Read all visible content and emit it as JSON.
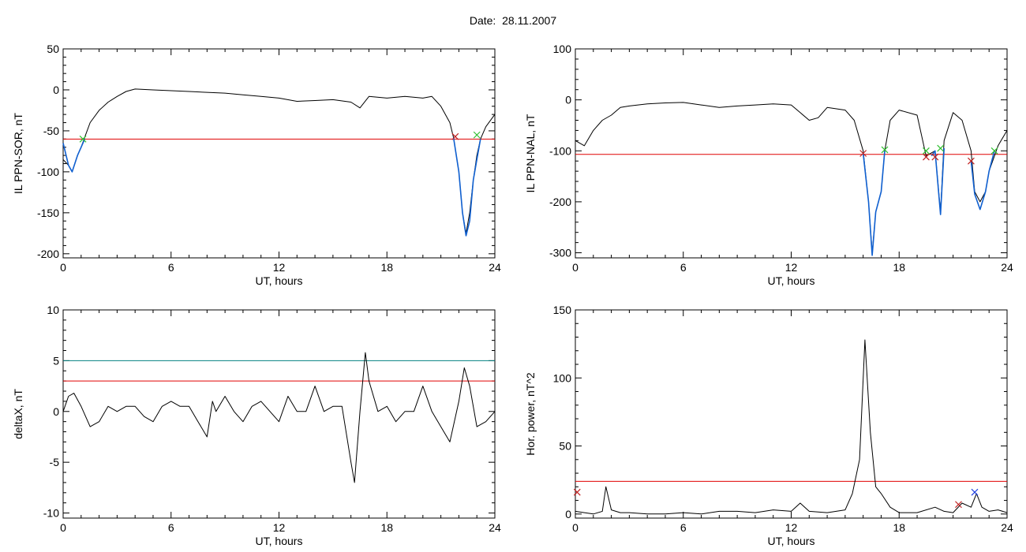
{
  "figure": {
    "title": "Date:  28.11.2007"
  },
  "colors": {
    "black": "#000000",
    "red": "#e00000",
    "teal": "#008080",
    "blue": "#1060d0",
    "green": "#30c030",
    "cross_red": "#c02020",
    "cross_blue": "#2040e0"
  },
  "chart_data": [
    {
      "type": "line",
      "xlabel": "UT, hours",
      "ylabel": "IL PPN-SOR, nT",
      "xlim": [
        0,
        24
      ],
      "ylim": [
        -205,
        50
      ],
      "xticks": [
        0,
        6,
        12,
        18,
        24
      ],
      "yticks": [
        -200,
        -150,
        -100,
        -50,
        0,
        50
      ],
      "series": [
        {
          "color": "black",
          "points": [
            [
              0,
              -85
            ],
            [
              0.3,
              -92
            ],
            [
              0.5,
              -100
            ],
            [
              0.8,
              -80
            ],
            [
              1.0,
              -70
            ],
            [
              1.2,
              -58
            ],
            [
              1.5,
              -40
            ],
            [
              2,
              -25
            ],
            [
              2.5,
              -15
            ],
            [
              3,
              -8
            ],
            [
              3.5,
              -2
            ],
            [
              4,
              1
            ],
            [
              5,
              0
            ],
            [
              6,
              -1
            ],
            [
              7,
              -2
            ],
            [
              8,
              -3
            ],
            [
              9,
              -4
            ],
            [
              10,
              -6
            ],
            [
              11,
              -8
            ],
            [
              12,
              -10
            ],
            [
              13,
              -14
            ],
            [
              14,
              -13
            ],
            [
              15,
              -12
            ],
            [
              16,
              -15
            ],
            [
              16.5,
              -22
            ],
            [
              17,
              -8
            ],
            [
              18,
              -10
            ],
            [
              19,
              -8
            ],
            [
              20,
              -10
            ],
            [
              20.5,
              -8
            ],
            [
              21,
              -20
            ],
            [
              21.5,
              -40
            ],
            [
              21.7,
              -58
            ],
            [
              22,
              -100
            ],
            [
              22.2,
              -150
            ],
            [
              22.4,
              -175
            ],
            [
              22.6,
              -150
            ],
            [
              22.8,
              -110
            ],
            [
              23,
              -80
            ],
            [
              23.2,
              -60
            ],
            [
              23.5,
              -45
            ],
            [
              24,
              -30
            ]
          ]
        },
        {
          "color": "blue",
          "points": [
            [
              0,
              -65
            ],
            [
              0.3,
              -92
            ],
            [
              0.5,
              -100
            ],
            [
              0.8,
              -80
            ],
            [
              1.0,
              -70
            ],
            [
              1.2,
              -60
            ]
          ]
        },
        {
          "color": "blue",
          "points": [
            [
              21.7,
              -58
            ],
            [
              22,
              -100
            ],
            [
              22.2,
              -150
            ],
            [
              22.4,
              -178
            ],
            [
              22.6,
              -160
            ],
            [
              22.8,
              -110
            ],
            [
              23,
              -85
            ],
            [
              23.2,
              -60
            ]
          ]
        }
      ],
      "hlines": [
        {
          "y": -60,
          "color": "red"
        }
      ],
      "markers": [
        {
          "x": 1.1,
          "y": -60,
          "color": "green"
        },
        {
          "x": 21.8,
          "y": -57,
          "color": "cross_red"
        },
        {
          "x": 23.0,
          "y": -55,
          "color": "green"
        }
      ]
    },
    {
      "type": "line",
      "xlabel": "UT, hours",
      "ylabel": "IL PPN-NAL, nT",
      "xlim": [
        0,
        24
      ],
      "ylim": [
        -310,
        100
      ],
      "xticks": [
        0,
        6,
        12,
        18,
        24
      ],
      "yticks": [
        -300,
        -200,
        -100,
        0,
        100
      ],
      "series": [
        {
          "color": "black",
          "points": [
            [
              0,
              -80
            ],
            [
              0.5,
              -90
            ],
            [
              1,
              -60
            ],
            [
              1.5,
              -40
            ],
            [
              2,
              -30
            ],
            [
              2.5,
              -15
            ],
            [
              3,
              -12
            ],
            [
              4,
              -8
            ],
            [
              5,
              -6
            ],
            [
              6,
              -5
            ],
            [
              7,
              -10
            ],
            [
              8,
              -15
            ],
            [
              9,
              -12
            ],
            [
              10,
              -10
            ],
            [
              11,
              -8
            ],
            [
              12,
              -10
            ],
            [
              12.5,
              -25
            ],
            [
              13,
              -40
            ],
            [
              13.5,
              -35
            ],
            [
              14,
              -15
            ],
            [
              15,
              -20
            ],
            [
              15.5,
              -40
            ],
            [
              16,
              -100
            ],
            [
              16.3,
              -200
            ],
            [
              16.5,
              -300
            ],
            [
              16.7,
              -220
            ],
            [
              17,
              -180
            ],
            [
              17.2,
              -100
            ],
            [
              17.5,
              -40
            ],
            [
              18,
              -20
            ],
            [
              19,
              -30
            ],
            [
              19.5,
              -110
            ],
            [
              20,
              -100
            ],
            [
              20.3,
              -220
            ],
            [
              20.5,
              -80
            ],
            [
              21,
              -25
            ],
            [
              21.5,
              -40
            ],
            [
              22,
              -100
            ],
            [
              22.2,
              -180
            ],
            [
              22.5,
              -200
            ],
            [
              22.8,
              -180
            ],
            [
              23,
              -140
            ],
            [
              23.5,
              -90
            ],
            [
              24,
              -60
            ]
          ]
        },
        {
          "color": "blue",
          "points": [
            [
              16,
              -105
            ],
            [
              16.3,
              -200
            ],
            [
              16.5,
              -305
            ],
            [
              16.7,
              -220
            ],
            [
              17,
              -180
            ],
            [
              17.2,
              -100
            ]
          ]
        },
        {
          "color": "blue",
          "points": [
            [
              19.8,
              -110
            ],
            [
              20,
              -100
            ],
            [
              20.3,
              -225
            ],
            [
              20.5,
              -95
            ]
          ]
        },
        {
          "color": "blue",
          "points": [
            [
              22,
              -120
            ],
            [
              22.2,
              -185
            ],
            [
              22.5,
              -215
            ],
            [
              22.8,
              -180
            ],
            [
              23,
              -140
            ],
            [
              23.3,
              -100
            ]
          ]
        }
      ],
      "hlines": [
        {
          "y": -107,
          "color": "red"
        }
      ],
      "markers": [
        {
          "x": 16.0,
          "y": -105,
          "color": "cross_red"
        },
        {
          "x": 17.2,
          "y": -98,
          "color": "green"
        },
        {
          "x": 19.5,
          "y": -112,
          "color": "cross_red"
        },
        {
          "x": 19.5,
          "y": -100,
          "color": "green"
        },
        {
          "x": 20.0,
          "y": -112,
          "color": "cross_red"
        },
        {
          "x": 20.3,
          "y": -95,
          "color": "green"
        },
        {
          "x": 22.0,
          "y": -120,
          "color": "cross_red"
        },
        {
          "x": 23.3,
          "y": -100,
          "color": "green"
        }
      ]
    },
    {
      "type": "line",
      "xlabel": "UT, hours",
      "ylabel": "deltaX, nT",
      "xlim": [
        0,
        24
      ],
      "ylim": [
        -10.5,
        10
      ],
      "xticks": [
        0,
        6,
        12,
        18,
        24
      ],
      "yticks": [
        -10,
        -5,
        0,
        5,
        10
      ],
      "series": [
        {
          "color": "black",
          "points": [
            [
              0,
              0
            ],
            [
              0.3,
              1.5
            ],
            [
              0.6,
              1.8
            ],
            [
              1,
              0.5
            ],
            [
              1.5,
              -1.5
            ],
            [
              2,
              -1
            ],
            [
              2.5,
              0.5
            ],
            [
              3,
              0
            ],
            [
              3.5,
              0.5
            ],
            [
              4,
              0.5
            ],
            [
              4.5,
              -0.5
            ],
            [
              5,
              -1
            ],
            [
              5.5,
              0.5
            ],
            [
              6,
              1
            ],
            [
              6.5,
              0.5
            ],
            [
              7,
              0.5
            ],
            [
              7.5,
              -1
            ],
            [
              8,
              -2.5
            ],
            [
              8.3,
              1
            ],
            [
              8.5,
              0
            ],
            [
              9,
              1.5
            ],
            [
              9.5,
              0
            ],
            [
              10,
              -1
            ],
            [
              10.5,
              0.5
            ],
            [
              11,
              1
            ],
            [
              11.5,
              0
            ],
            [
              12,
              -1
            ],
            [
              12.5,
              1.5
            ],
            [
              13,
              0
            ],
            [
              13.5,
              0
            ],
            [
              14,
              2.5
            ],
            [
              14.5,
              0
            ],
            [
              15,
              0.5
            ],
            [
              15.5,
              0.5
            ],
            [
              16,
              -5
            ],
            [
              16.2,
              -7
            ],
            [
              16.5,
              0
            ],
            [
              16.8,
              5.8
            ],
            [
              17,
              3
            ],
            [
              17.5,
              0
            ],
            [
              18,
              0.5
            ],
            [
              18.5,
              -1
            ],
            [
              19,
              0
            ],
            [
              19.5,
              0
            ],
            [
              20,
              2.5
            ],
            [
              20.5,
              0
            ],
            [
              21,
              -1.5
            ],
            [
              21.5,
              -3
            ],
            [
              22,
              1
            ],
            [
              22.3,
              4.3
            ],
            [
              22.6,
              2.5
            ],
            [
              23,
              -1.5
            ],
            [
              23.5,
              -1
            ],
            [
              24,
              0
            ]
          ]
        }
      ],
      "hlines": [
        {
          "y": 5,
          "color": "teal"
        },
        {
          "y": 3,
          "color": "red"
        }
      ],
      "markers": []
    },
    {
      "type": "line",
      "xlabel": "UT, hours",
      "ylabel": "Hor. power, nT^2",
      "xlim": [
        0,
        24
      ],
      "ylim": [
        -3,
        150
      ],
      "xticks": [
        0,
        6,
        12,
        18,
        24
      ],
      "yticks": [
        0,
        50,
        100,
        150
      ],
      "series": [
        {
          "color": "black",
          "points": [
            [
              0,
              2
            ],
            [
              0.5,
              1
            ],
            [
              1,
              0
            ],
            [
              1.5,
              2
            ],
            [
              1.7,
              20
            ],
            [
              2,
              3
            ],
            [
              2.5,
              1
            ],
            [
              3,
              1
            ],
            [
              4,
              0
            ],
            [
              5,
              0
            ],
            [
              6,
              1
            ],
            [
              7,
              0
            ],
            [
              8,
              2
            ],
            [
              9,
              2
            ],
            [
              10,
              1
            ],
            [
              11,
              3
            ],
            [
              12,
              2
            ],
            [
              12.5,
              8
            ],
            [
              13,
              2
            ],
            [
              14,
              1
            ],
            [
              15,
              3
            ],
            [
              15.4,
              15
            ],
            [
              15.8,
              40
            ],
            [
              16.1,
              128
            ],
            [
              16.4,
              60
            ],
            [
              16.7,
              20
            ],
            [
              17,
              15
            ],
            [
              17.5,
              5
            ],
            [
              18,
              1
            ],
            [
              19,
              1
            ],
            [
              20,
              5
            ],
            [
              20.5,
              2
            ],
            [
              21,
              1
            ],
            [
              21.5,
              8
            ],
            [
              22,
              5
            ],
            [
              22.3,
              15
            ],
            [
              22.6,
              5
            ],
            [
              23,
              2
            ],
            [
              23.5,
              3
            ],
            [
              24,
              1
            ]
          ]
        }
      ],
      "hlines": [
        {
          "y": 24,
          "color": "red"
        }
      ],
      "markers": [
        {
          "x": 0.1,
          "y": 16,
          "color": "cross_red"
        },
        {
          "x": 22.2,
          "y": 16,
          "color": "cross_blue"
        },
        {
          "x": 21.3,
          "y": 7,
          "color": "cross_red"
        }
      ]
    }
  ]
}
